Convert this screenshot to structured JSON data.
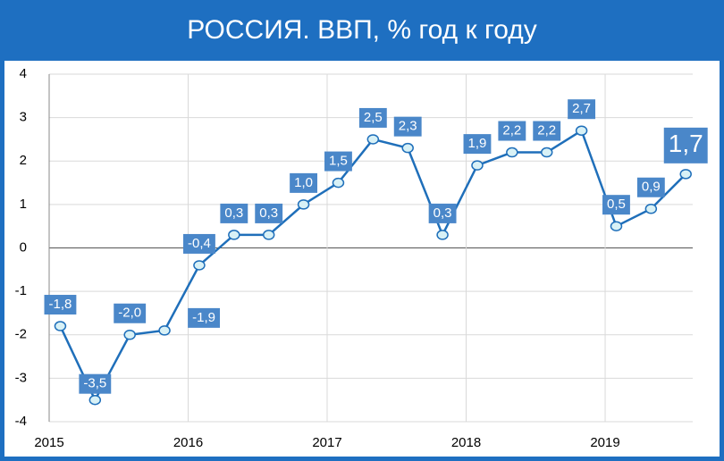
{
  "chart_data": {
    "type": "line",
    "title": "РОССИЯ. ВВП, % год к году",
    "x": [
      2015.08,
      2015.33,
      2015.58,
      2015.83,
      2016.08,
      2016.33,
      2016.58,
      2016.83,
      2017.08,
      2017.33,
      2017.58,
      2017.83,
      2018.08,
      2018.33,
      2018.58,
      2018.83,
      2019.08,
      2019.33,
      2019.58
    ],
    "series": [
      {
        "name": "ВВП",
        "color": "#1f6fba",
        "values": [
          -1.8,
          -3.5,
          -2.0,
          -1.9,
          -0.4,
          0.3,
          0.3,
          1.0,
          1.5,
          2.5,
          2.3,
          0.3,
          1.9,
          2.2,
          2.2,
          2.7,
          0.5,
          0.9,
          1.7
        ],
        "value_labels": [
          "-1,8",
          "-3,5",
          "-2,0",
          "-1,9",
          "-0,4",
          "0,3",
          "0,3",
          "1,0",
          "1,5",
          "2,5",
          "2,3",
          "0,3",
          "1,9",
          "2,2",
          "2,2",
          "2,7",
          "0,5",
          "0,9",
          "1,7"
        ]
      }
    ],
    "xlim": [
      2015,
      2019.63
    ],
    "xticks": [
      2015,
      2016,
      2017,
      2018,
      2019
    ],
    "ylim": [
      -4,
      4
    ],
    "yticks": [
      -4,
      -3,
      -2,
      -1,
      0,
      1,
      2,
      3,
      4
    ],
    "grid": true
  }
}
